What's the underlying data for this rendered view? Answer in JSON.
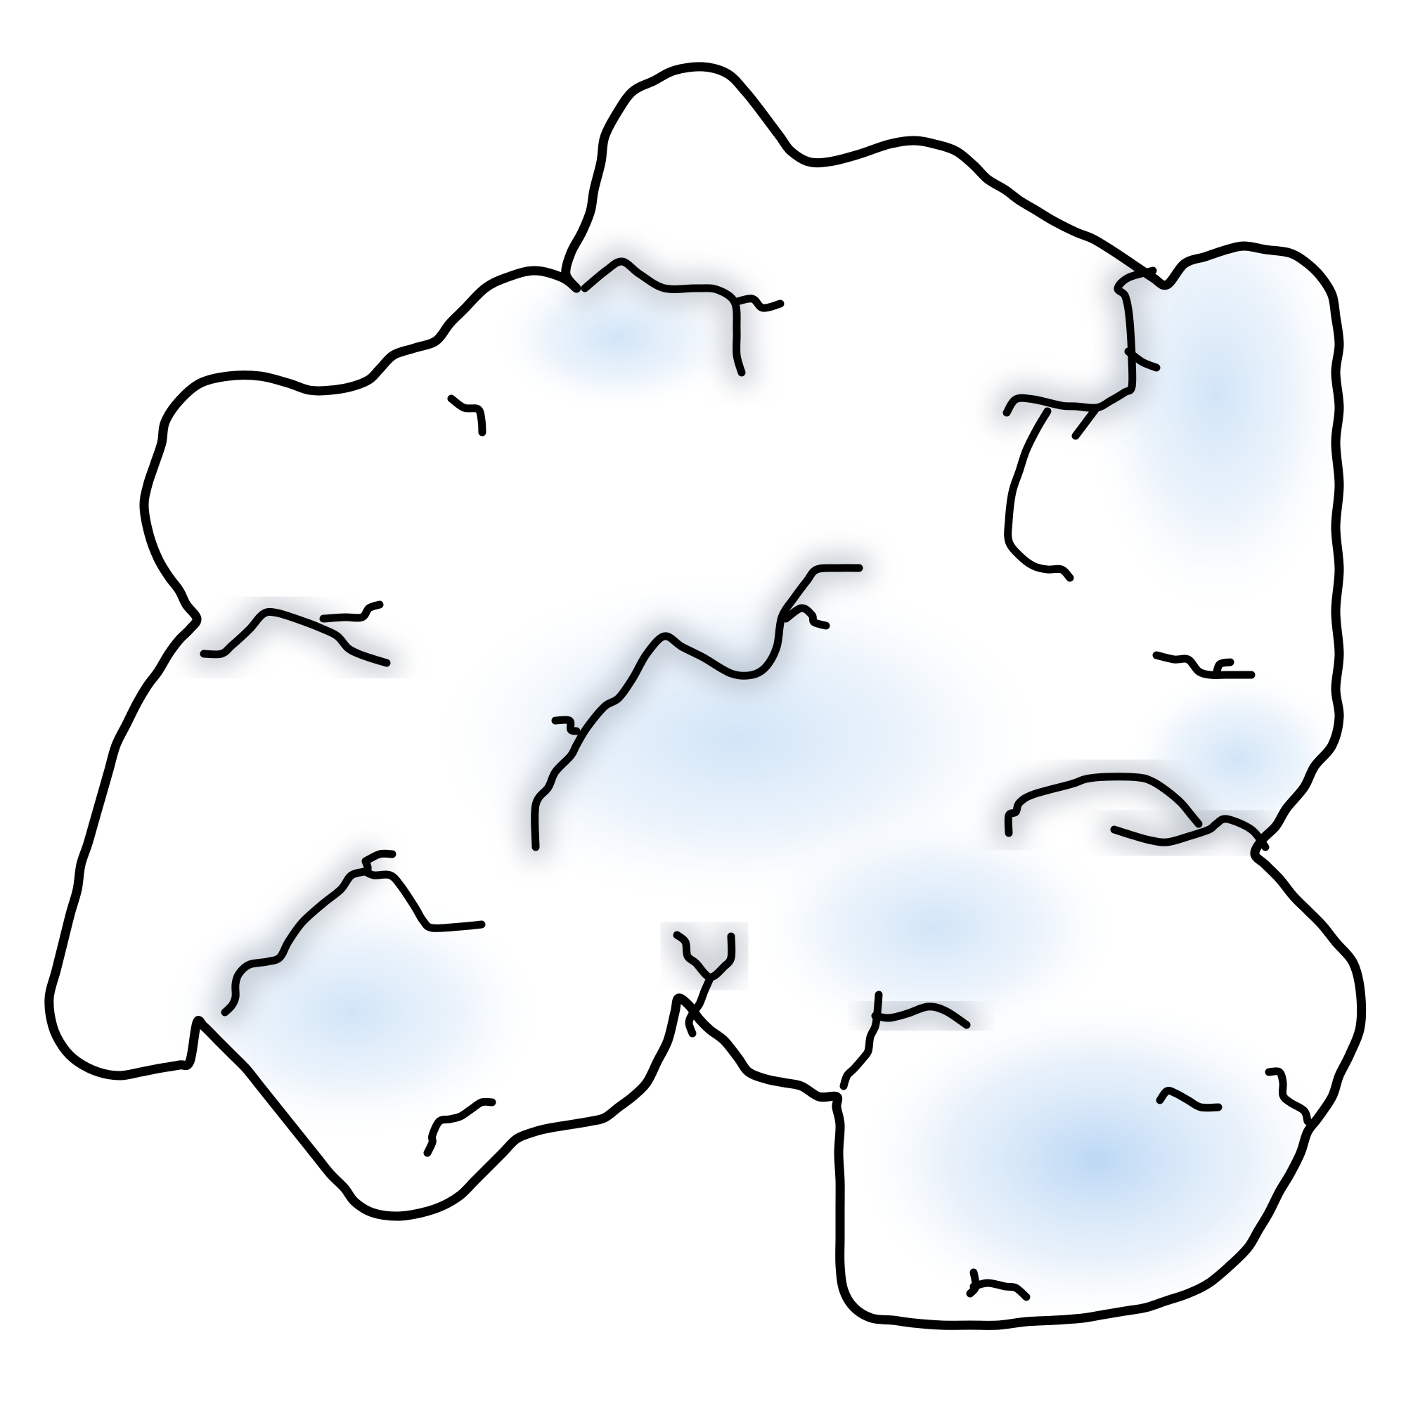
{
  "illustration": {
    "subject": "snow-chunk-icon",
    "colors": {
      "outline": "#000000",
      "fill_light": "#ffffff",
      "fill_shade": "#cfe3f7",
      "fill_deep": "#bcd8f5",
      "crease_shadow": "#9aa4b0",
      "background": "#ffffff"
    }
  }
}
